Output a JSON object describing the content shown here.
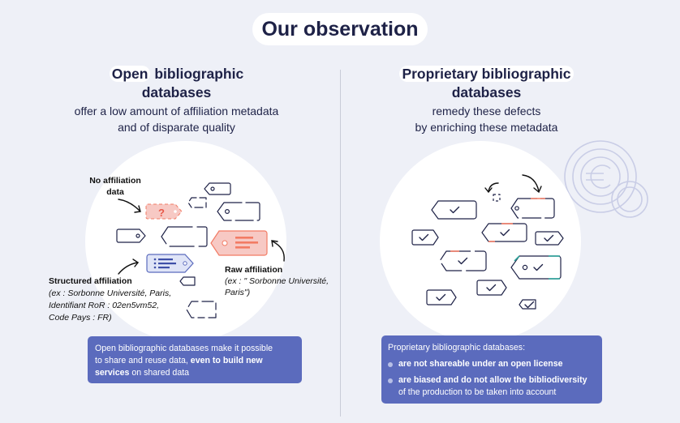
{
  "title": "Our observation",
  "left": {
    "heading_highlight": "Open",
    "heading_rest": "bibliographic",
    "heading_line2": "databases",
    "sub1": "offer a low amount of affiliation metadata",
    "sub2": "and of disparate quality",
    "no_aff_1": "No affiliation",
    "no_aff_2": "data",
    "raw_title": "Raw affiliation",
    "raw_ex1": "(ex : \" Sorbonne Université,",
    "raw_ex2": "Paris\")",
    "struct_title": "Structured affiliation",
    "struct_1": "(ex : Sorbonne Université, Paris,",
    "struct_2": "Identifiant RoR : 02en5vm52,",
    "struct_3": "Code Pays : FR)",
    "box_1": "Open bibliographic databases make it possible",
    "box_2a": "to share and reuse data, ",
    "box_2b": "even to build new",
    "box_3a": "services",
    "box_3b": " on shared data"
  },
  "right": {
    "heading_highlight": "Proprietary bibliographic",
    "heading_line2": "databases",
    "sub1": "remedy these defects",
    "sub2": "by enriching these metadata",
    "box_title": "Proprietary bibliographic databases:",
    "bullet1": "are not shareable under an open license",
    "bullet2a": "are biased and do not allow the bibliodiversity",
    "bullet2b": "of the production to be taken into account"
  },
  "colors": {
    "background": "#eef0f7",
    "navy": "#1e2247",
    "box_blue": "#5b6bbd",
    "coral": "#f27b64",
    "pink_tag": "#f7c9c4",
    "teal": "#2aa39a"
  },
  "icons": [
    "euro-icon",
    "question-tag-icon",
    "checkmark-tag-icon",
    "arrow-icon"
  ]
}
